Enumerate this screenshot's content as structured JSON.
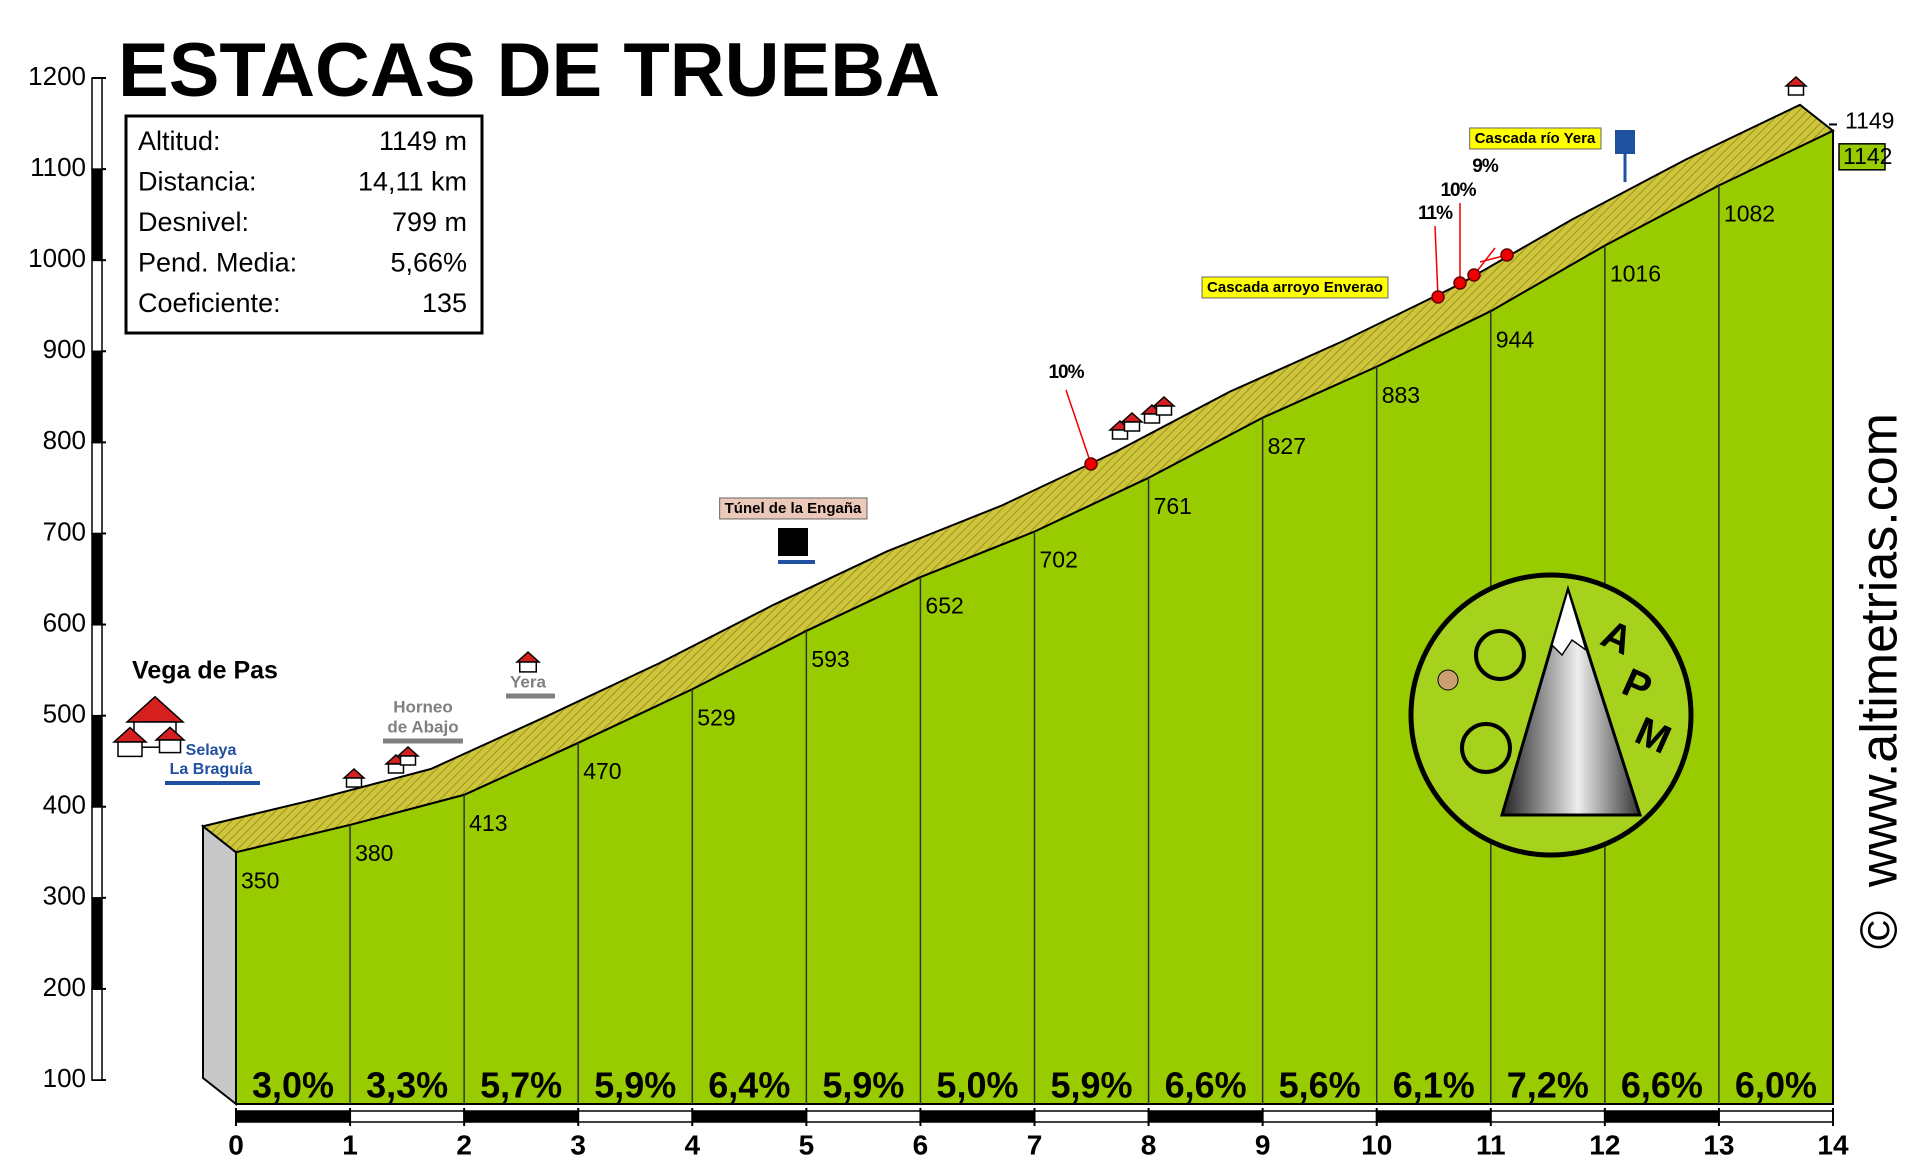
{
  "chart_data": {
    "type": "profile",
    "title": "ESTACAS DE TRUEBA",
    "stats": [
      {
        "label": "Altitud:",
        "value": "1149 m"
      },
      {
        "label": "Distancia:",
        "value": "14,11 km"
      },
      {
        "label": "Desnivel:",
        "value": "799 m"
      },
      {
        "label": "Pend. Media:",
        "value": "5,66%"
      },
      {
        "label": "Coeficiente:",
        "value": "135"
      }
    ],
    "x": [
      0,
      1,
      2,
      3,
      4,
      5,
      6,
      7,
      8,
      9,
      10,
      11,
      12,
      13,
      14
    ],
    "values": [
      350,
      380,
      413,
      470,
      529,
      593,
      652,
      702,
      761,
      827,
      883,
      944,
      1016,
      1082,
      1142
    ],
    "summit": 1149,
    "xlim": [
      0,
      14
    ],
    "xticks": [
      0,
      1,
      2,
      3,
      4,
      5,
      6,
      7,
      8,
      9,
      10,
      11,
      12,
      13,
      14
    ],
    "ylim": [
      100,
      1200
    ],
    "yticks": [
      100,
      200,
      300,
      400,
      500,
      600,
      700,
      800,
      900,
      1000,
      1100,
      1200
    ],
    "gradients": {
      "values": [
        3.0,
        3.3,
        5.7,
        5.9,
        6.4,
        5.9,
        5.0,
        5.9,
        6.6,
        5.6,
        6.1,
        7.2,
        6.6,
        6.0
      ],
      "value_labels": [
        "3,0%",
        "3,3%",
        "5,7%",
        "5,9%",
        "6,4%",
        "5,9%",
        "5,0%",
        "5,9%",
        "6,6%",
        "5,6%",
        "6,1%",
        "7,2%",
        "6,6%",
        "6,0%"
      ]
    },
    "annotations": [
      "Vega de Pas",
      "Selaya",
      "La Braguía",
      "Horneo",
      "de Abajo",
      "Yera",
      "Túnel de la Engaña",
      "10%",
      "Cascada arroyo Enverao",
      "11%",
      "10%",
      "9%",
      "Cascada río Yera"
    ],
    "logo": [
      "A",
      "P",
      "M"
    ],
    "watermark": "www.altimetrias.com",
    "copyright": "©",
    "colors": {
      "area": "#99cc00",
      "ribbon": "#cfc53a",
      "side": "#c8c8c8"
    }
  }
}
